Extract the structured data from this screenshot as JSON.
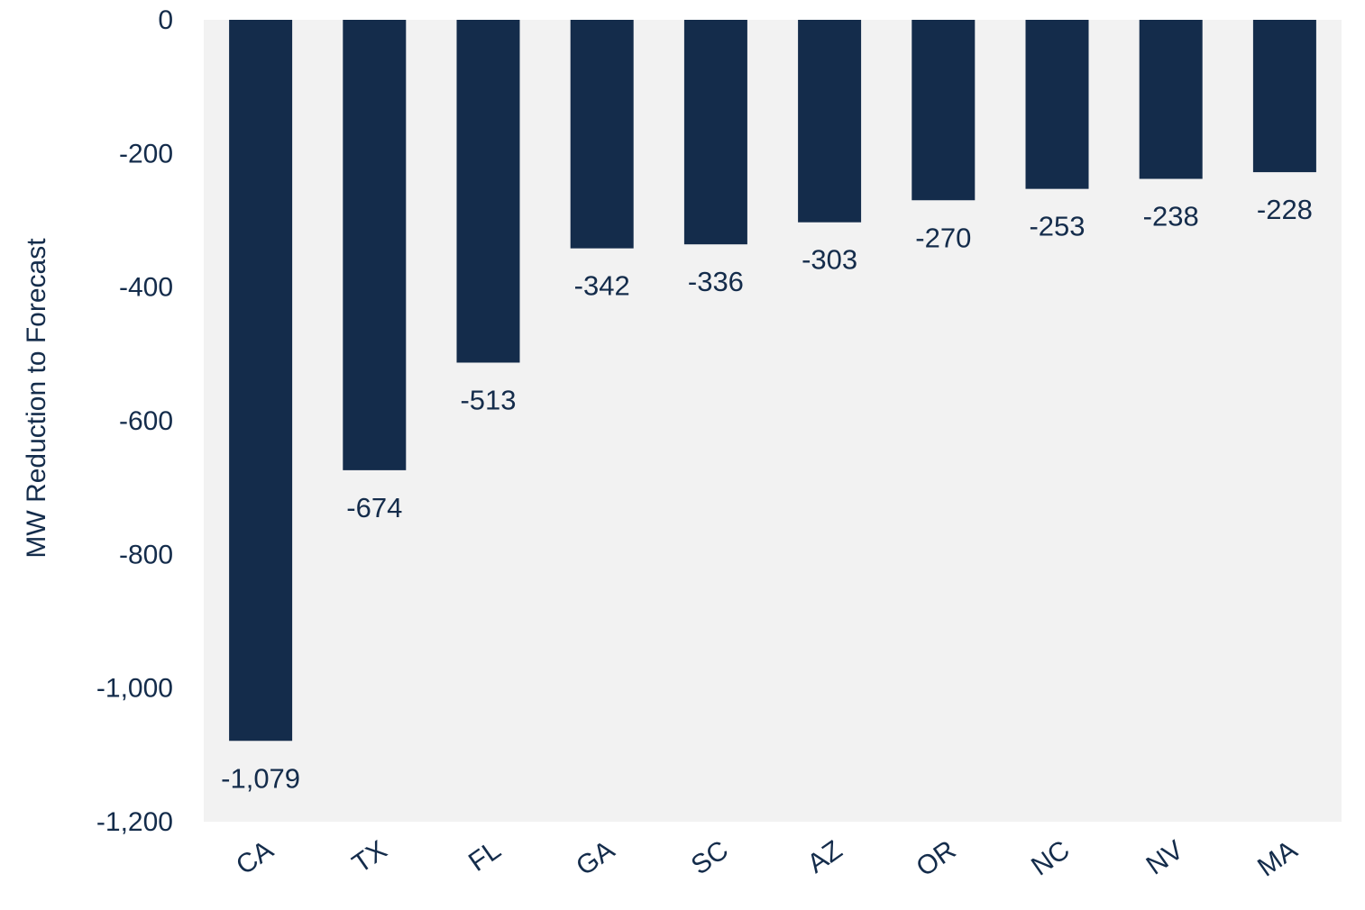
{
  "chart_data": {
    "type": "bar",
    "title": "",
    "xlabel": "",
    "ylabel": "MW Reduction to Forecast",
    "categories": [
      "CA",
      "TX",
      "FL",
      "GA",
      "SC",
      "AZ",
      "OR",
      "NC",
      "NV",
      "MA"
    ],
    "values": [
      -1079,
      -674,
      -513,
      -342,
      -336,
      -303,
      -270,
      -253,
      -238,
      -228
    ],
    "value_labels": [
      "-1,079",
      "-674",
      "-513",
      "-342",
      "-336",
      "-303",
      "-270",
      "-253",
      "-238",
      "-228"
    ],
    "ylim": [
      -1200,
      0
    ],
    "yticks": [
      0,
      -200,
      -400,
      -600,
      -800,
      -1000,
      -1200
    ],
    "ytick_labels": [
      "0",
      "-200",
      "-400",
      "-600",
      "-800",
      "-1,000",
      "-1,200"
    ],
    "grid": false,
    "legend": "none",
    "colors": {
      "bar": "#142c4b",
      "text": "#142c4b",
      "plot_background": "#f2f2f2",
      "page_background": "#ffffff"
    }
  }
}
